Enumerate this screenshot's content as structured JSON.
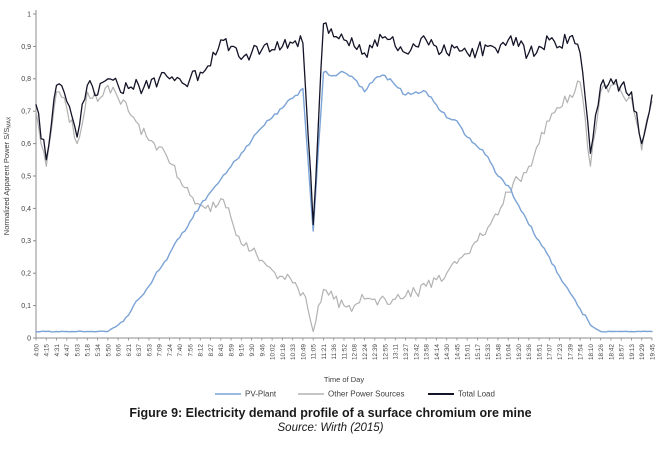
{
  "figure": {
    "caption": "Figure 9: Electricity demand profile of a surface chromium ore mine",
    "source": "Source: Wirth (2015)"
  },
  "chart_data": {
    "type": "line",
    "title": "",
    "xlabel": "Time of Day",
    "ylabel": "Normalized Apparent Power S/S",
    "ylabel_subscript": "MAX",
    "ylim": [
      0,
      1
    ],
    "grid": false,
    "legend_position": "bottom",
    "y_ticks": [
      0,
      0.1,
      0.2,
      0.3,
      0.4,
      0.5,
      0.6,
      0.7,
      0.8,
      0.9,
      1
    ],
    "y_tick_labels": [
      "0",
      "0,1",
      "0,2",
      "0,3",
      "0,4",
      "0,5",
      "0,6",
      "0,7",
      "0,8",
      "0,9",
      "1"
    ],
    "x": [
      "4:00",
      "4:15",
      "4:31",
      "4:47",
      "5:03",
      "5:18",
      "5:34",
      "5:50",
      "6:06",
      "6:21",
      "6:37",
      "6:53",
      "7:09",
      "7:24",
      "7:40",
      "7:56",
      "8:12",
      "8:27",
      "8:43",
      "8:59",
      "9:15",
      "9:30",
      "9:46",
      "10:02",
      "10:18",
      "10:33",
      "10:49",
      "11:05",
      "11:21",
      "11:36",
      "11:52",
      "12:08",
      "12:24",
      "12:39",
      "12:55",
      "13:11",
      "13:27",
      "13:42",
      "13:58",
      "14:14",
      "14:30",
      "14:45",
      "15:01",
      "15:17",
      "15:33",
      "15:48",
      "16:04",
      "16:20",
      "16:36",
      "16:51",
      "17:07",
      "17:23",
      "17:39",
      "17:54",
      "18:10",
      "18:26",
      "18:42",
      "18:57",
      "19:13",
      "19:29",
      "19:45"
    ],
    "series": [
      {
        "name": "PV-Plant",
        "color": "#7ba3d6",
        "stroke_width": 1.4,
        "jitter": 0.006,
        "values": [
          0.02,
          0.02,
          0.02,
          0.02,
          0.02,
          0.02,
          0.02,
          0.02,
          0.04,
          0.07,
          0.12,
          0.16,
          0.21,
          0.26,
          0.31,
          0.36,
          0.41,
          0.45,
          0.49,
          0.53,
          0.57,
          0.61,
          0.65,
          0.68,
          0.71,
          0.74,
          0.77,
          0.33,
          0.82,
          0.81,
          0.82,
          0.8,
          0.76,
          0.8,
          0.81,
          0.78,
          0.75,
          0.76,
          0.76,
          0.72,
          0.68,
          0.67,
          0.62,
          0.59,
          0.56,
          0.5,
          0.47,
          0.41,
          0.35,
          0.3,
          0.25,
          0.19,
          0.14,
          0.09,
          0.04,
          0.02,
          0.02,
          0.02,
          0.02,
          0.02,
          0.02
        ]
      },
      {
        "name": "Other Power Sources",
        "color": "#b2b2b2",
        "stroke_width": 1.2,
        "jitter": 0.02,
        "values": [
          0.7,
          0.53,
          0.76,
          0.71,
          0.6,
          0.76,
          0.73,
          0.78,
          0.74,
          0.7,
          0.66,
          0.61,
          0.59,
          0.54,
          0.49,
          0.44,
          0.41,
          0.39,
          0.43,
          0.37,
          0.29,
          0.27,
          0.24,
          0.21,
          0.19,
          0.17,
          0.14,
          0.02,
          0.15,
          0.12,
          0.1,
          0.1,
          0.12,
          0.12,
          0.12,
          0.12,
          0.13,
          0.14,
          0.16,
          0.18,
          0.2,
          0.23,
          0.26,
          0.3,
          0.34,
          0.38,
          0.45,
          0.49,
          0.53,
          0.6,
          0.67,
          0.71,
          0.75,
          0.79,
          0.53,
          0.76,
          0.78,
          0.76,
          0.74,
          0.58,
          0.73
        ]
      },
      {
        "name": "Total Load",
        "color": "#141428",
        "stroke_width": 1.3,
        "jitter": 0.024,
        "values": [
          0.72,
          0.55,
          0.78,
          0.73,
          0.62,
          0.78,
          0.75,
          0.8,
          0.78,
          0.77,
          0.78,
          0.77,
          0.8,
          0.8,
          0.8,
          0.8,
          0.82,
          0.84,
          0.92,
          0.9,
          0.86,
          0.88,
          0.89,
          0.89,
          0.9,
          0.91,
          0.91,
          0.35,
          0.97,
          0.93,
          0.92,
          0.9,
          0.88,
          0.92,
          0.93,
          0.9,
          0.88,
          0.9,
          0.92,
          0.9,
          0.88,
          0.9,
          0.88,
          0.89,
          0.9,
          0.88,
          0.92,
          0.9,
          0.88,
          0.9,
          0.92,
          0.9,
          0.93,
          0.88,
          0.57,
          0.78,
          0.8,
          0.78,
          0.76,
          0.6,
          0.75
        ]
      }
    ]
  }
}
